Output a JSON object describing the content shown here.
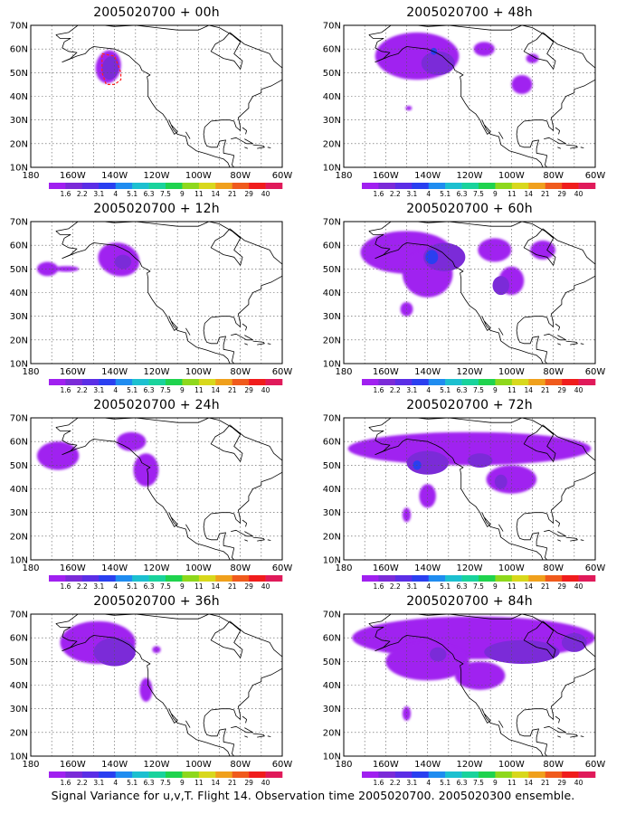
{
  "panels": [
    {
      "id": "p00",
      "title": "2005020700 + 00h",
      "col": 0,
      "row": 0
    },
    {
      "id": "p48",
      "title": "2005020700 + 48h",
      "col": 1,
      "row": 0
    },
    {
      "id": "p12",
      "title": "2005020700 + 12h",
      "col": 0,
      "row": 1
    },
    {
      "id": "p60",
      "title": "2005020700 + 60h",
      "col": 1,
      "row": 1
    },
    {
      "id": "p24",
      "title": "2005020700 + 24h",
      "col": 0,
      "row": 2
    },
    {
      "id": "p72",
      "title": "2005020700 + 72h",
      "col": 1,
      "row": 2
    },
    {
      "id": "p36",
      "title": "2005020700 + 36h",
      "col": 0,
      "row": 3
    },
    {
      "id": "p84",
      "title": "2005020700 + 84h",
      "col": 1,
      "row": 3
    }
  ],
  "lat_labels": [
    "70N",
    "60N",
    "50N",
    "40N",
    "30N",
    "20N",
    "10N"
  ],
  "lon_labels": [
    "180",
    "160W",
    "140W",
    "120W",
    "100W",
    "80W",
    "60W"
  ],
  "colorbar": {
    "labels": [
      "1.6",
      "2.2",
      "3.1",
      "4",
      "5.1",
      "6.3",
      "7.5",
      "9",
      "11",
      "14",
      "21",
      "29",
      "40"
    ],
    "colors": [
      "#a020f0",
      "#7b2bd8",
      "#5b2ee6",
      "#2a3ff0",
      "#1f8cf0",
      "#1cc0d0",
      "#19d39c",
      "#1fd34e",
      "#8ed81c",
      "#d8d81c",
      "#f0a01c",
      "#f05a1c",
      "#f01c1c",
      "#e01a5a"
    ]
  },
  "caption": "Signal Variance for u,v,T. Flight 14. Observation time 2005020700. 2005020300 ensemble."
}
